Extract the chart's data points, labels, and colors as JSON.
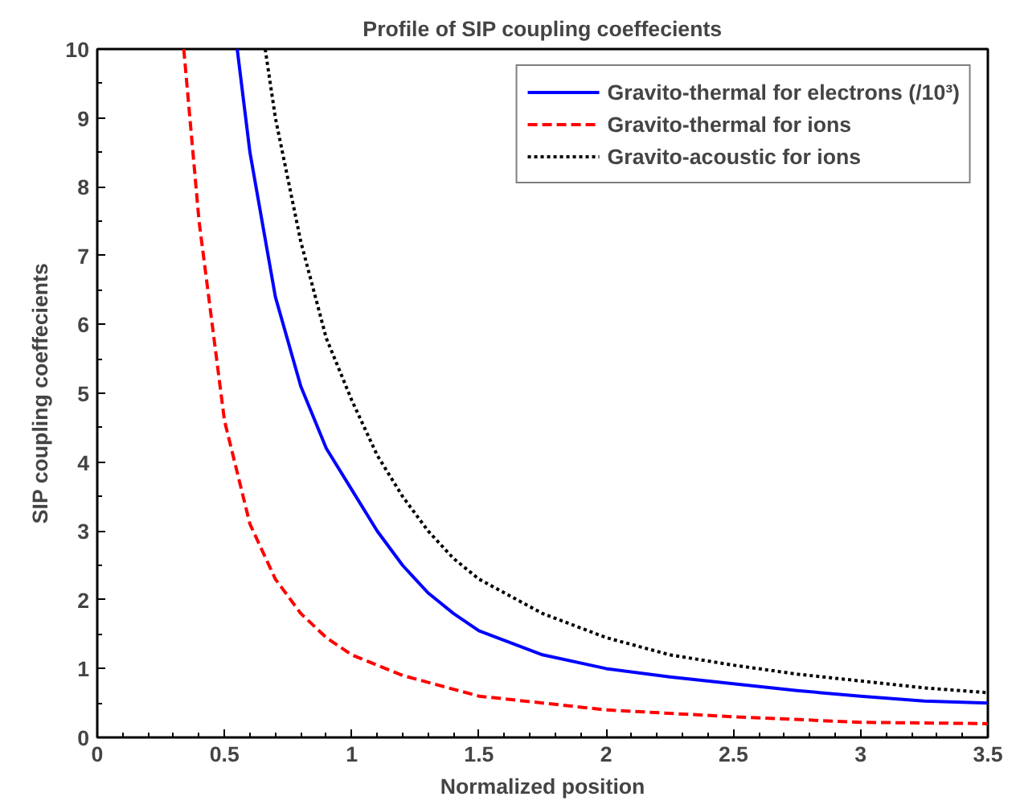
{
  "chart_data": {
    "type": "line",
    "title": "Profile of SIP coupling coeffecients",
    "xlabel": "Normalized position",
    "ylabel": "SIP coupling coeffecients",
    "xlim": [
      0,
      3.5
    ],
    "ylim": [
      0,
      10
    ],
    "xticks": [
      0,
      0.5,
      1,
      1.5,
      2,
      2.5,
      3,
      3.5
    ],
    "yticks": [
      0,
      1,
      2,
      3,
      4,
      5,
      6,
      7,
      8,
      9,
      10
    ],
    "grid": false,
    "legend": "top right",
    "series": [
      {
        "name": "Gravito-thermal for electrons (/10³)",
        "color": "#0000ff",
        "line_style": "solid",
        "x": [
          0.55,
          0.6,
          0.7,
          0.8,
          0.9,
          1.0,
          1.1,
          1.2,
          1.3,
          1.4,
          1.5,
          1.75,
          2.0,
          2.25,
          2.5,
          2.75,
          3.0,
          3.25,
          3.5
        ],
        "values": [
          10,
          8.5,
          6.4,
          5.1,
          4.2,
          3.6,
          3.0,
          2.5,
          2.1,
          1.8,
          1.55,
          1.2,
          1.0,
          0.88,
          0.78,
          0.68,
          0.6,
          0.53,
          0.5
        ]
      },
      {
        "name": "Gravito-thermal for ions",
        "color": "#ff0000",
        "line_style": "dashed",
        "x": [
          0.34,
          0.4,
          0.5,
          0.6,
          0.7,
          0.8,
          0.9,
          1.0,
          1.2,
          1.5,
          1.75,
          2.0,
          2.5,
          3.0,
          3.5
        ],
        "values": [
          10,
          7.5,
          4.6,
          3.1,
          2.3,
          1.8,
          1.45,
          1.2,
          0.9,
          0.6,
          0.5,
          0.4,
          0.3,
          0.22,
          0.2
        ]
      },
      {
        "name": "Gravito-acoustic for ions",
        "color": "#000000",
        "line_style": "dotted",
        "x": [
          0.66,
          0.7,
          0.8,
          0.9,
          1.0,
          1.1,
          1.2,
          1.3,
          1.4,
          1.5,
          1.75,
          2.0,
          2.25,
          2.5,
          2.75,
          3.0,
          3.25,
          3.5
        ],
        "values": [
          10,
          9.0,
          7.2,
          5.8,
          4.9,
          4.1,
          3.5,
          3.0,
          2.6,
          2.3,
          1.8,
          1.45,
          1.2,
          1.05,
          0.92,
          0.82,
          0.72,
          0.65
        ]
      }
    ]
  }
}
